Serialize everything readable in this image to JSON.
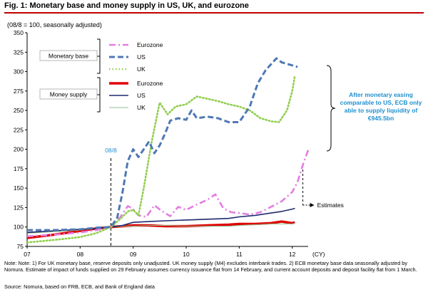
{
  "title": "Fig. 1:  Monetary base and money supply in US, UK, and eurozone",
  "unit_label": "(08/8 = 100, seasonally adjusted)",
  "colors": {
    "title_rule": "#c00000",
    "eurozone_base": "#e27de2",
    "us_base": "#4f78b4",
    "uk_base": "#91cf50",
    "eurozone_supply": "#e00000",
    "us_supply": "#1f2a6e",
    "uk_supply": "#8fbf8f",
    "callout": "#1f8fd0"
  },
  "chart_data": {
    "type": "line",
    "ylim": [
      75,
      350
    ],
    "yticks": [
      75,
      100,
      125,
      150,
      175,
      200,
      225,
      250,
      275,
      300,
      325,
      350
    ],
    "xlim": [
      2007,
      2012.3
    ],
    "xticks": [
      {
        "x": 2007,
        "label": "07"
      },
      {
        "x": 2008,
        "label": "08"
      },
      {
        "x": 2009,
        "label": "09"
      },
      {
        "x": 2010,
        "label": "10"
      },
      {
        "x": 2011,
        "label": "11"
      },
      {
        "x": 2012,
        "label": "12"
      }
    ],
    "x_unit": "(CY)",
    "vline": {
      "x": 2008.58,
      "label": "08/8"
    },
    "estimates_label": "Estimates",
    "legend_groups": [
      {
        "label": "Monetary base",
        "entries": [
          "Eurozone",
          "US",
          "UK"
        ]
      },
      {
        "label": "Money supply",
        "entries": [
          "Eurozone",
          "US",
          "UK"
        ]
      }
    ],
    "series": [
      {
        "name": "Eurozone",
        "group": "Monetary base",
        "color": "#e27de2",
        "style": "dashdot",
        "x": [
          2007,
          2007.5,
          2008,
          2008.3,
          2008.58,
          2008.75,
          2008.9,
          2009,
          2009.1,
          2009.25,
          2009.4,
          2009.55,
          2009.7,
          2009.85,
          2010,
          2010.2,
          2010.4,
          2010.55,
          2010.7,
          2010.85,
          2011,
          2011.2,
          2011.4,
          2011.6,
          2011.8,
          2012,
          2012.1,
          2012.2,
          2012.3
        ],
        "y": [
          88,
          90,
          93,
          96,
          100,
          112,
          127,
          123,
          115,
          113,
          128,
          120,
          114,
          126,
          122,
          129,
          135,
          142,
          124,
          119,
          118,
          116,
          119,
          126,
          133,
          145,
          158,
          180,
          199
        ]
      },
      {
        "name": "US",
        "group": "Monetary base",
        "color": "#4f78b4",
        "style": "dashed",
        "x": [
          2007,
          2007.5,
          2008,
          2008.3,
          2008.58,
          2008.7,
          2008.8,
          2008.9,
          2009,
          2009.1,
          2009.2,
          2009.3,
          2009.4,
          2009.5,
          2009.6,
          2009.7,
          2009.85,
          2010,
          2010.1,
          2010.2,
          2010.4,
          2010.6,
          2010.8,
          2011,
          2011.2,
          2011.35,
          2011.5,
          2011.7,
          2011.8,
          2011.9,
          2012,
          2012.1
        ],
        "y": [
          96,
          96,
          97,
          99,
          100,
          112,
          145,
          185,
          200,
          190,
          200,
          210,
          195,
          205,
          220,
          237,
          240,
          238,
          250,
          240,
          242,
          240,
          235,
          235,
          255,
          285,
          302,
          317,
          312,
          310,
          308,
          306
        ]
      },
      {
        "name": "UK",
        "group": "Monetary base",
        "color": "#91cf50",
        "style": "dotted",
        "x": [
          2007,
          2007.3,
          2007.6,
          2008,
          2008.3,
          2008.58,
          2008.75,
          2008.9,
          2009,
          2009.1,
          2009.2,
          2009.35,
          2009.5,
          2009.65,
          2009.8,
          2010,
          2010.2,
          2010.4,
          2010.6,
          2010.8,
          2011,
          2011.2,
          2011.4,
          2011.6,
          2011.75,
          2011.9,
          2012,
          2012.05
        ],
        "y": [
          80,
          82,
          84,
          87,
          92,
          100,
          110,
          120,
          122,
          115,
          150,
          210,
          260,
          245,
          255,
          258,
          268,
          265,
          262,
          258,
          255,
          250,
          240,
          236,
          235,
          250,
          275,
          295
        ]
      },
      {
        "name": "Eurozone",
        "group": "Money supply",
        "color": "#e00000",
        "style": "solid-thick",
        "x": [
          2007,
          2007.5,
          2008,
          2008.3,
          2008.58,
          2008.8,
          2009,
          2009.3,
          2009.6,
          2010,
          2010.4,
          2010.8,
          2011,
          2011.3,
          2011.6,
          2011.8,
          2011.9,
          2012,
          2012.05
        ],
        "y": [
          86,
          90,
          95,
          98,
          100,
          101,
          102,
          102,
          101,
          101,
          102,
          103,
          104,
          104,
          105,
          107,
          106,
          105,
          106
        ]
      },
      {
        "name": "US",
        "group": "Money supply",
        "color": "#1f2a6e",
        "style": "solid",
        "x": [
          2007,
          2007.5,
          2008,
          2008.3,
          2008.58,
          2008.8,
          2009,
          2009.3,
          2009.6,
          2010,
          2010.4,
          2010.8,
          2011,
          2011.3,
          2011.6,
          2011.8,
          2012,
          2012.05
        ],
        "y": [
          93,
          95,
          97,
          98,
          100,
          102,
          106,
          107,
          108,
          109,
          110,
          111,
          113,
          115,
          118,
          120,
          123,
          124
        ]
      },
      {
        "name": "UK",
        "group": "Money supply",
        "color": "#8fbf8f",
        "style": "solid-thin",
        "x": [
          2007,
          2007.5,
          2008,
          2008.3,
          2008.58,
          2008.8,
          2009,
          2009.3,
          2009.6,
          2010,
          2010.4,
          2010.8,
          2011,
          2011.3,
          2011.6,
          2011.8,
          2012,
          2012.05
        ],
        "y": [
          92,
          94,
          96,
          98,
          100,
          101,
          101,
          102,
          102,
          101,
          101,
          101,
          102,
          103,
          104,
          104,
          104,
          105
        ]
      }
    ],
    "callout": "After monetary easing comparable to US, ECB only able to supply liquidity of €945.5bn"
  },
  "notes": "Note: Note: 1) For UK monetary base, reserve deposits only unadjusted. UK money supply (M4) excludes interbank trades. 2) ECB monetary base data seasonally adjusted by Nomura. Estimate of impact of funds supplied on 29 February assumes currency issuance flat from 14 February, and current account deposits and deposit facility flat from 1 March.",
  "source": "Source: Nomura, based on FRB, ECB, and Bank of England data"
}
